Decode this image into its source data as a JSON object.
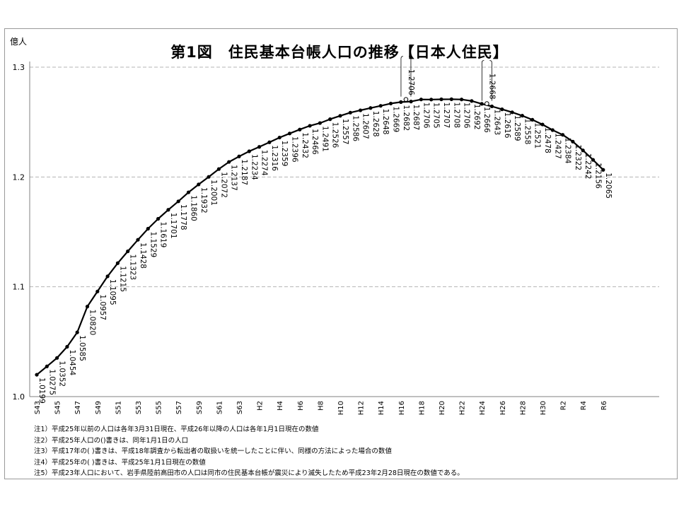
{
  "chart_data": {
    "type": "line",
    "title": "第1図　住民基本台帳人口の推移【日本人住民】",
    "ylabel": "億人",
    "ylim": [
      1.0,
      1.3
    ],
    "yticks": [
      "1.0",
      "1.1",
      "1.2",
      "1.3"
    ],
    "grid": true,
    "x_tick_labels": [
      "S43",
      "S45",
      "S47",
      "S49",
      "S51",
      "S53",
      "S55",
      "S57",
      "S59",
      "S61",
      "S63",
      "H2",
      "H4",
      "H6",
      "H8",
      "H10",
      "H12",
      "H14",
      "H16",
      "H18",
      "H20",
      "H22",
      "H24",
      "H26",
      "H28",
      "H30",
      "R2",
      "R4",
      "R6"
    ],
    "series": [
      {
        "values": [
          1.0199,
          1.0275,
          1.0352,
          1.0454,
          1.0585,
          1.082,
          1.0957,
          1.1095,
          1.1215,
          1.1323,
          1.1428,
          1.1529,
          1.1619,
          1.1701,
          1.1778,
          1.186,
          1.1932,
          1.2001,
          1.2072,
          1.2137,
          1.2187,
          1.2234,
          1.2274,
          1.2316,
          1.2359,
          1.2396,
          1.2432,
          1.2466,
          1.2491,
          1.2526,
          1.2557,
          1.2586,
          1.2607,
          1.2628,
          1.2648,
          1.2669,
          1.2682,
          1.2687,
          1.2706,
          1.2705,
          1.2707,
          1.2708,
          1.2706,
          1.2692,
          1.2666,
          1.2643,
          1.2616,
          1.2589,
          1.2558,
          1.2521,
          1.2478,
          1.2427,
          1.2384,
          1.2322,
          1.2242,
          1.2156,
          1.2065
        ],
        "labels": [
          "1.0199",
          "1.0275",
          "1.0352",
          "1.0454",
          "1.0585",
          "1.0820",
          "1.0957",
          "1.1095",
          "1.1215",
          "1.1323",
          "1.1428",
          "1.1529",
          "1.1619",
          "1.1701",
          "1.1778",
          "1.1860",
          "1.1932",
          "1.2001",
          "1.2072",
          "1.2137",
          "1.2187",
          "1.2234",
          "1.2274",
          "1.2316",
          "1.2359",
          "1.2396",
          "1.2432",
          "1.2466",
          "1.2491",
          "1.2526",
          "1.2557",
          "1.2586",
          "1.2607",
          "1.2628",
          "1.2648",
          "1.2669",
          "1.2682",
          "1.2687",
          "1.2706",
          "1.2705",
          "1.2707",
          "1.2708",
          "1.2706",
          "1.2692",
          "1.2666",
          "1.2643",
          "1.2616",
          "1.2589",
          "1.2558",
          "1.2521",
          "1.2478",
          "1.2427",
          "1.2384",
          "1.2322",
          "1.2242",
          "1.2156",
          "1.2065"
        ]
      }
    ],
    "special_points": [
      {
        "after_index": 36,
        "value": 1.2706,
        "label": "1.2706"
      },
      {
        "after_index": 44,
        "value": 1.2668,
        "label": "1.2668"
      }
    ]
  },
  "notes": [
    "注1）平成25年以前の人口は各年3月31日現在、平成26年以降の人口は各年1月1日現在の数値",
    "注2）平成25年人口の()書きは、同年1月1日の人口",
    "注3）平成17年の( )書きは、平成18年調査から転出者の取扱いを統一したことに伴い、同様の方法によった場合の数値",
    "注4）平成25年の( )書きは、平成25年1月1日現在の数値",
    "注5）平成23年人口において、岩手県陸前高田市の人口は同市の住民基本台帳が震災により滅失したため平成23年2月28日現在の数値である。"
  ]
}
